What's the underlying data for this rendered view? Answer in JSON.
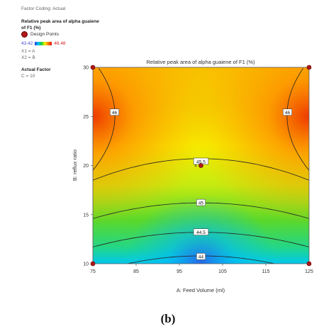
{
  "sidebar": {
    "factor_coding": "Factor Coding: Actual",
    "response_title": "Relative peak area of alpha guaiene of F1 (%)",
    "design_points_label": "Design Points",
    "range_low": "43.42",
    "range_high": "46.48",
    "x1_label": "X1 = A",
    "x2_label": "X2 = B",
    "actual_factor_heading": "Actual Factor",
    "actual_factor_value": "C = 10"
  },
  "caption": "(b)",
  "chart_data": {
    "type": "contour",
    "title": "Relative peak area of alpha guaiene of F1 (%)",
    "xlabel": "A: Feed Volume (ml)",
    "ylabel": "B: reflux ratio",
    "xlim": [
      75,
      125
    ],
    "ylim": [
      10,
      30
    ],
    "xticks": [
      "75",
      "85",
      "95",
      "105",
      "115",
      "125"
    ],
    "yticks": [
      "10",
      "15",
      "20",
      "25",
      "30"
    ],
    "color_range": [
      43.42,
      46.48
    ],
    "colormap": [
      "#2a3bd8",
      "#00c0ff",
      "#1ecf3a",
      "#f4f000",
      "#ff7a00",
      "#e01010"
    ],
    "contour_labels": [
      {
        "text": "46",
        "x": 80,
        "y": 25.4
      },
      {
        "text": "46",
        "x": 120,
        "y": 25.4
      },
      {
        "text": "45.5",
        "x": 100,
        "y": 20.4
      },
      {
        "text": "45",
        "x": 100,
        "y": 16.2
      },
      {
        "text": "44.5",
        "x": 100,
        "y": 13.2
      },
      {
        "text": "44",
        "x": 100,
        "y": 10.7
      }
    ],
    "design_points": [
      {
        "x": 75,
        "y": 10
      },
      {
        "x": 75,
        "y": 30
      },
      {
        "x": 125,
        "y": 10
      },
      {
        "x": 125,
        "y": 30
      },
      {
        "x": 100,
        "y": 20,
        "label": "4"
      }
    ]
  }
}
